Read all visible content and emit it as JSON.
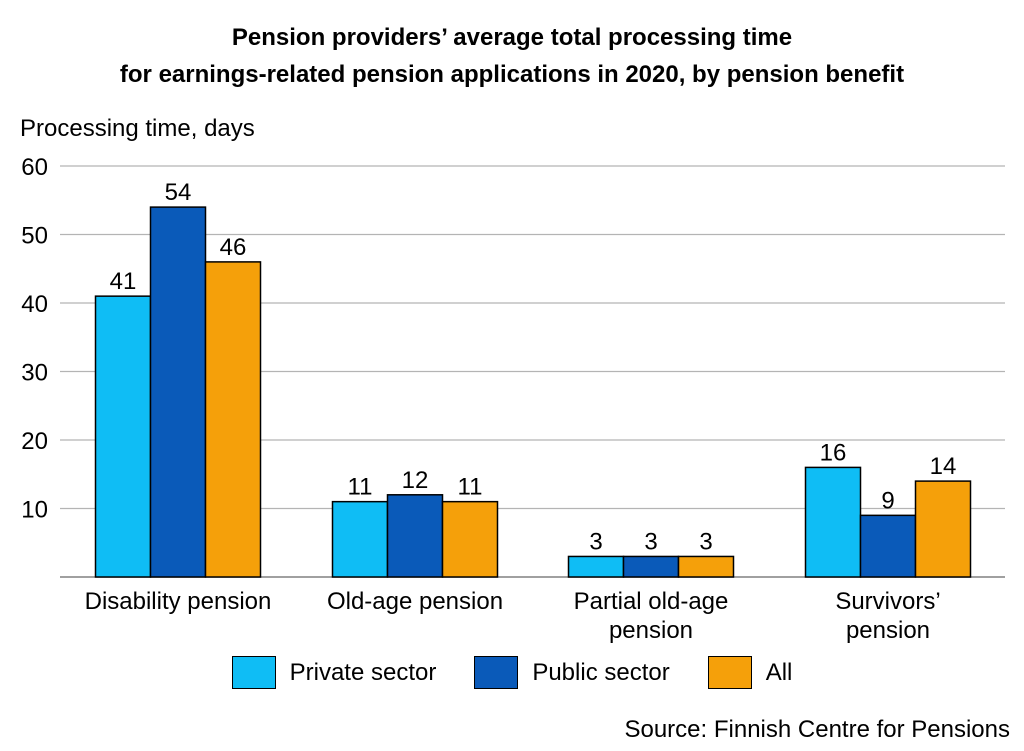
{
  "chart_data": {
    "type": "bar",
    "title": "Pension providers’ average total processing time",
    "subtitle": "for earnings-related pension applications in 2020, by pension benefit",
    "ylabel": "Processing time, days",
    "xlabel": "",
    "ylim": [
      0,
      60
    ],
    "yticks": [
      10,
      20,
      30,
      40,
      50,
      60
    ],
    "grid": true,
    "legend_position": "bottom",
    "categories": [
      [
        "Disability pension"
      ],
      [
        "Old-age pension"
      ],
      [
        "Partial old-age",
        "pension"
      ],
      [
        "Survivors’",
        "pension"
      ]
    ],
    "series": [
      {
        "name": "Private sector",
        "color": "#0FBDF5",
        "values": [
          41,
          11,
          3,
          16
        ]
      },
      {
        "name": "Public sector",
        "color": "#0A5AB9",
        "values": [
          54,
          12,
          3,
          9
        ]
      },
      {
        "name": "All",
        "color": "#F5A00A",
        "values": [
          46,
          11,
          3,
          14
        ]
      }
    ],
    "source": "Source: Finnish Centre for Pensions"
  }
}
